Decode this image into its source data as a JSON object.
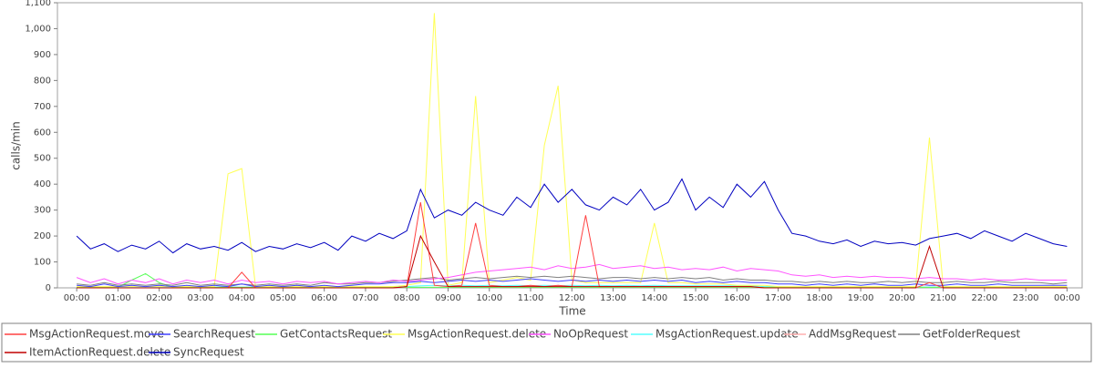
{
  "chart_data": {
    "type": "line",
    "x_label": "Time",
    "y_label": "calls/min",
    "xlim": [
      -28,
      1462
    ],
    "xticks": [
      {
        "value": 0,
        "label": "00:00"
      },
      {
        "value": 60,
        "label": "01:00"
      },
      {
        "value": 120,
        "label": "02:00"
      },
      {
        "value": 180,
        "label": "03:00"
      },
      {
        "value": 240,
        "label": "04:00"
      },
      {
        "value": 300,
        "label": "05:00"
      },
      {
        "value": 360,
        "label": "06:00"
      },
      {
        "value": 420,
        "label": "07:00"
      },
      {
        "value": 480,
        "label": "08:00"
      },
      {
        "value": 540,
        "label": "09:00"
      },
      {
        "value": 600,
        "label": "10:00"
      },
      {
        "value": 660,
        "label": "11:00"
      },
      {
        "value": 720,
        "label": "12:00"
      },
      {
        "value": 780,
        "label": "13:00"
      },
      {
        "value": 840,
        "label": "14:00"
      },
      {
        "value": 900,
        "label": "15:00"
      },
      {
        "value": 960,
        "label": "16:00"
      },
      {
        "value": 1020,
        "label": "17:00"
      },
      {
        "value": 1080,
        "label": "18:00"
      },
      {
        "value": 1140,
        "label": "19:00"
      },
      {
        "value": 1200,
        "label": "20:00"
      },
      {
        "value": 1260,
        "label": "21:00"
      },
      {
        "value": 1320,
        "label": "22:00"
      },
      {
        "value": 1380,
        "label": "23:00"
      },
      {
        "value": 1440,
        "label": "00:00"
      }
    ],
    "ylim": [
      0,
      1100
    ],
    "yticks": [
      0,
      100,
      200,
      300,
      400,
      500,
      600,
      700,
      800,
      900,
      {
        "value": 1000,
        "label": "1,000"
      },
      {
        "value": 1100,
        "label": "1,100"
      }
    ],
    "x": [
      0,
      20,
      40,
      60,
      80,
      100,
      120,
      140,
      160,
      180,
      200,
      220,
      240,
      260,
      280,
      300,
      320,
      340,
      360,
      380,
      400,
      420,
      440,
      460,
      480,
      500,
      520,
      540,
      560,
      580,
      600,
      620,
      640,
      660,
      680,
      700,
      720,
      740,
      760,
      780,
      800,
      820,
      840,
      860,
      880,
      900,
      920,
      940,
      960,
      980,
      1000,
      1020,
      1040,
      1060,
      1080,
      1100,
      1120,
      1140,
      1160,
      1180,
      1200,
      1220,
      1240,
      1260,
      1280,
      1300,
      1320,
      1340,
      1360,
      1380,
      1400,
      1420,
      1440
    ],
    "series": [
      {
        "name": "AddMsgRequest",
        "color": "#ffafaf",
        "values": [
          2,
          2,
          2,
          2,
          2,
          2,
          2,
          2,
          2,
          2,
          2,
          2,
          2,
          2,
          2,
          2,
          2,
          2,
          2,
          2,
          2,
          2,
          2,
          2,
          2,
          2,
          2,
          2,
          2,
          2,
          2,
          2,
          2,
          2,
          2,
          2,
          2,
          2,
          2,
          2,
          2,
          2,
          2,
          2,
          2,
          2,
          2,
          2,
          2,
          2,
          2,
          2,
          2,
          2,
          2,
          2,
          2,
          2,
          2,
          2,
          2,
          2,
          2,
          2,
          2,
          2,
          2,
          2,
          2,
          2,
          2,
          2,
          2
        ]
      },
      {
        "name": "MsgActionRequest.update",
        "color": "#55ffff",
        "values": [
          3,
          3,
          3,
          3,
          3,
          3,
          3,
          3,
          3,
          3,
          3,
          3,
          3,
          3,
          3,
          3,
          3,
          3,
          3,
          3,
          3,
          3,
          3,
          3,
          5,
          8,
          10,
          8,
          10,
          8,
          10,
          8,
          10,
          8,
          10,
          8,
          10,
          8,
          10,
          8,
          10,
          8,
          10,
          8,
          8,
          8,
          8,
          8,
          8,
          8,
          5,
          5,
          3,
          3,
          3,
          3,
          3,
          3,
          3,
          3,
          3,
          3,
          3,
          3,
          3,
          3,
          3,
          3,
          3,
          3,
          3,
          3,
          3
        ]
      },
      {
        "name": "GetContactsRequest",
        "color": "#55ff55",
        "values": [
          2,
          2,
          2,
          2,
          30,
          55,
          20,
          2,
          2,
          2,
          2,
          2,
          2,
          2,
          2,
          2,
          2,
          2,
          2,
          2,
          2,
          2,
          2,
          2,
          2,
          2,
          2,
          2,
          2,
          2,
          2,
          2,
          2,
          2,
          2,
          2,
          2,
          2,
          2,
          2,
          2,
          2,
          2,
          2,
          2,
          2,
          2,
          2,
          2,
          2,
          2,
          2,
          2,
          2,
          2,
          2,
          2,
          2,
          2,
          2,
          2,
          2,
          2,
          2,
          2,
          2,
          2,
          2,
          2,
          2,
          2,
          2,
          2
        ]
      },
      {
        "name": "MsgActionRequest.delete",
        "color": "#ffff55",
        "values": [
          5,
          5,
          5,
          5,
          5,
          5,
          5,
          5,
          5,
          5,
          5,
          440,
          460,
          5,
          5,
          5,
          5,
          5,
          5,
          5,
          5,
          5,
          5,
          5,
          10,
          20,
          1060,
          10,
          20,
          740,
          20,
          30,
          40,
          30,
          550,
          780,
          30,
          20,
          20,
          20,
          20,
          20,
          250,
          20,
          20,
          15,
          15,
          15,
          10,
          10,
          10,
          5,
          5,
          5,
          5,
          5,
          5,
          5,
          5,
          5,
          5,
          5,
          580,
          5,
          5,
          5,
          5,
          5,
          5,
          5,
          5,
          5,
          5
        ]
      },
      {
        "name": "GetFolderRequest",
        "color": "#808080",
        "values": [
          15,
          10,
          20,
          10,
          15,
          10,
          15,
          10,
          20,
          10,
          15,
          10,
          15,
          10,
          15,
          10,
          15,
          10,
          20,
          15,
          15,
          20,
          20,
          25,
          30,
          35,
          40,
          30,
          35,
          40,
          35,
          40,
          45,
          40,
          45,
          40,
          45,
          40,
          35,
          40,
          40,
          35,
          40,
          35,
          40,
          35,
          40,
          30,
          35,
          30,
          30,
          25,
          25,
          20,
          25,
          20,
          25,
          20,
          20,
          25,
          20,
          25,
          20,
          20,
          25,
          20,
          20,
          25,
          20,
          20,
          20,
          15,
          20
        ]
      },
      {
        "name": "SearchRequest",
        "color": "#4040ff",
        "values": [
          10,
          5,
          15,
          5,
          10,
          5,
          10,
          5,
          10,
          5,
          10,
          5,
          15,
          5,
          10,
          5,
          10,
          5,
          10,
          5,
          10,
          15,
          15,
          20,
          20,
          25,
          20,
          25,
          30,
          25,
          30,
          25,
          30,
          35,
          30,
          25,
          30,
          25,
          30,
          25,
          30,
          25,
          30,
          25,
          30,
          20,
          25,
          20,
          25,
          20,
          20,
          15,
          15,
          10,
          15,
          10,
          15,
          10,
          15,
          10,
          10,
          15,
          10,
          10,
          15,
          10,
          10,
          15,
          10,
          10,
          10,
          10,
          10
        ]
      },
      {
        "name": "NoOpRequest",
        "color": "#ff55ff",
        "values": [
          40,
          20,
          35,
          15,
          30,
          20,
          35,
          15,
          30,
          20,
          30,
          15,
          30,
          20,
          25,
          15,
          25,
          20,
          25,
          15,
          20,
          25,
          20,
          30,
          25,
          30,
          35,
          40,
          50,
          60,
          65,
          70,
          75,
          80,
          70,
          85,
          75,
          80,
          90,
          75,
          80,
          85,
          75,
          80,
          70,
          75,
          70,
          80,
          65,
          75,
          70,
          65,
          50,
          45,
          50,
          40,
          45,
          40,
          45,
          40,
          40,
          35,
          40,
          35,
          35,
          30,
          35,
          30,
          30,
          35,
          30,
          30,
          30
        ]
      },
      {
        "name": "MsgActionRequest.move",
        "color": "#ff4040",
        "values": [
          0,
          0,
          0,
          0,
          0,
          0,
          0,
          0,
          0,
          0,
          0,
          0,
          60,
          0,
          0,
          0,
          0,
          0,
          0,
          0,
          0,
          0,
          0,
          0,
          5,
          330,
          10,
          5,
          10,
          250,
          10,
          5,
          5,
          10,
          5,
          10,
          5,
          280,
          5,
          5,
          5,
          5,
          5,
          5,
          5,
          5,
          5,
          5,
          5,
          5,
          0,
          0,
          0,
          0,
          0,
          0,
          0,
          0,
          0,
          0,
          0,
          0,
          20,
          0,
          0,
          0,
          0,
          0,
          0,
          0,
          0,
          0,
          0
        ]
      },
      {
        "name": "ItemActionRequest.delete",
        "color": "#c00000",
        "values": [
          0,
          0,
          0,
          0,
          0,
          0,
          0,
          0,
          0,
          0,
          0,
          0,
          0,
          0,
          0,
          0,
          0,
          0,
          0,
          0,
          0,
          0,
          0,
          0,
          5,
          200,
          100,
          5,
          5,
          5,
          5,
          5,
          5,
          5,
          5,
          5,
          5,
          5,
          5,
          5,
          5,
          5,
          5,
          5,
          5,
          5,
          5,
          5,
          5,
          5,
          0,
          0,
          0,
          0,
          0,
          0,
          0,
          0,
          0,
          0,
          0,
          0,
          160,
          0,
          0,
          0,
          0,
          0,
          0,
          0,
          0,
          0,
          0
        ]
      },
      {
        "name": "SyncRequest",
        "color": "#0000c0",
        "values": [
          200,
          150,
          170,
          140,
          165,
          150,
          180,
          135,
          170,
          150,
          160,
          145,
          175,
          140,
          160,
          150,
          170,
          155,
          175,
          145,
          200,
          180,
          210,
          190,
          220,
          380,
          270,
          300,
          280,
          330,
          300,
          280,
          350,
          310,
          400,
          330,
          380,
          320,
          300,
          350,
          320,
          380,
          300,
          330,
          420,
          300,
          350,
          310,
          400,
          350,
          410,
          300,
          210,
          200,
          180,
          170,
          185,
          160,
          180,
          170,
          175,
          165,
          190,
          200,
          210,
          190,
          220,
          200,
          180,
          210,
          190,
          170,
          160
        ]
      }
    ],
    "legend_order": [
      7,
      5,
      2,
      3,
      6,
      1,
      0,
      4,
      8,
      9
    ]
  }
}
